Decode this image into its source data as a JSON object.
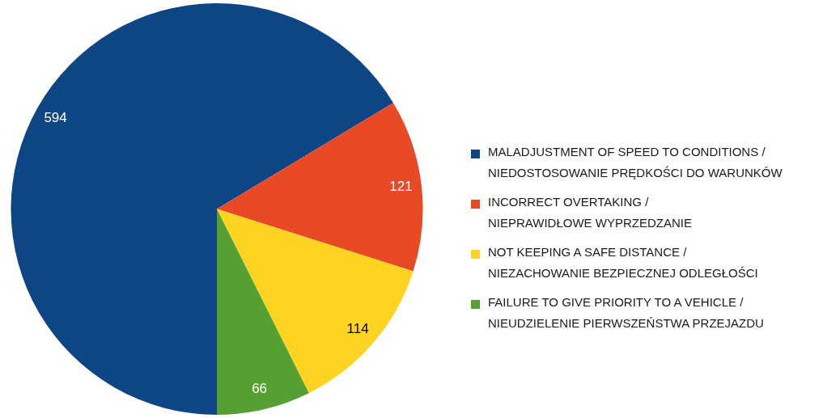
{
  "chart_data": {
    "type": "pie",
    "categories": [
      "MALADJUSTMENT OF SPEED TO CONDITIONS / NIEDOSTOSOWANIE PRĘDKOŚCI DO WARUNKÓW",
      "INCORRECT OVERTAKING / NIEPRAWIDŁOWE WYPRZEDZANIE",
      "NOT KEEPING A SAFE DISTANCE / NIEZACHOWANIE BEZPIECZNEJ ODLEGŁOŚCI",
      "FAILURE TO GIVE PRIORITY TO A VEHICLE / NIEUDZIELENIE PIERWSZEŃSTWA PRZEJAZDU"
    ],
    "values": [
      594,
      121,
      114,
      66
    ],
    "colors": [
      "#0e4584",
      "#e84a25",
      "#fed322",
      "#56a033"
    ],
    "data_labels": true,
    "legend": "right"
  }
}
